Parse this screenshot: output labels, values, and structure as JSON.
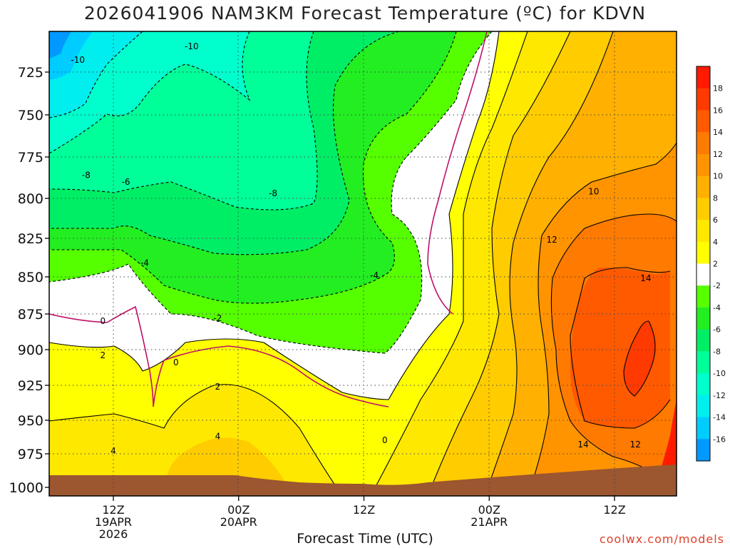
{
  "chart_data": {
    "type": "heatmap",
    "title": "2026041906 NAM3KM Forecast Temperature (ºC) for KDVN",
    "xlabel": "Forecast Time (UTC)",
    "ylabel": "",
    "credit": "coolwx.com/models",
    "yscale": "pressure (hPa), increasing downward",
    "ylim": [
      1000,
      700
    ],
    "y_ticks": [
      725,
      750,
      775,
      800,
      825,
      850,
      875,
      900,
      925,
      950,
      975,
      1000
    ],
    "x_ticks": [
      {
        "hour": 6,
        "label1": "12Z",
        "label2": "19APR",
        "label3": "2026"
      },
      {
        "hour": 18,
        "label1": "00Z",
        "label2": "20APR",
        "label3": ""
      },
      {
        "hour": 30,
        "label1": "12Z",
        "label2": "",
        "label3": ""
      },
      {
        "hour": 42,
        "label1": "00Z",
        "label2": "21APR",
        "label3": ""
      },
      {
        "hour": 54,
        "label1": "12Z",
        "label2": "",
        "label3": ""
      }
    ],
    "xlim_hours": [
      0,
      60
    ],
    "grid": true,
    "colorbar": {
      "placement": "right",
      "labels": [
        "18",
        "16",
        "14",
        "12",
        "10",
        "8",
        "6",
        "4",
        "2",
        "-2",
        "-4",
        "-6",
        "-8",
        "-10",
        "-12",
        "-14",
        "-16"
      ],
      "colors": [
        "#ff1a00",
        "#ff3a00",
        "#ff5a00",
        "#ff7a00",
        "#ff9400",
        "#ffb000",
        "#ffcc00",
        "#ffe800",
        "#ffff00",
        "#ffffff",
        "#55ff00",
        "#22ee22",
        "#00ee66",
        "#00ff99",
        "#00ffcc",
        "#00eeee",
        "#00ccff",
        "#0099ff"
      ]
    },
    "contour_labels": [
      {
        "text": "-10",
        "x": 2.6,
        "y": 718
      },
      {
        "text": "-10",
        "x": 13.5,
        "y": 710
      },
      {
        "text": "-8",
        "x": 3.4,
        "y": 786
      },
      {
        "text": "-6",
        "x": 7.2,
        "y": 790
      },
      {
        "text": "-8",
        "x": 21.3,
        "y": 797
      },
      {
        "text": "-4",
        "x": 9.0,
        "y": 841
      },
      {
        "text": "-4",
        "x": 31.0,
        "y": 849
      },
      {
        "text": "-2",
        "x": 16.0,
        "y": 878
      },
      {
        "text": "0",
        "x": 5.0,
        "y": 880
      },
      {
        "text": "0",
        "x": 12.0,
        "y": 909
      },
      {
        "text": "0",
        "x": 32.0,
        "y": 965
      },
      {
        "text": "2",
        "x": 5.0,
        "y": 904
      },
      {
        "text": "2",
        "x": 16.0,
        "y": 926
      },
      {
        "text": "4",
        "x": 16.0,
        "y": 962
      },
      {
        "text": "4",
        "x": 6.0,
        "y": 973
      },
      {
        "text": "10",
        "x": 52.0,
        "y": 796
      },
      {
        "text": "12",
        "x": 48.0,
        "y": 826
      },
      {
        "text": "14",
        "x": 57.0,
        "y": 851
      },
      {
        "text": "14",
        "x": 51.0,
        "y": 968
      },
      {
        "text": "12",
        "x": 56.0,
        "y": 968
      }
    ]
  }
}
